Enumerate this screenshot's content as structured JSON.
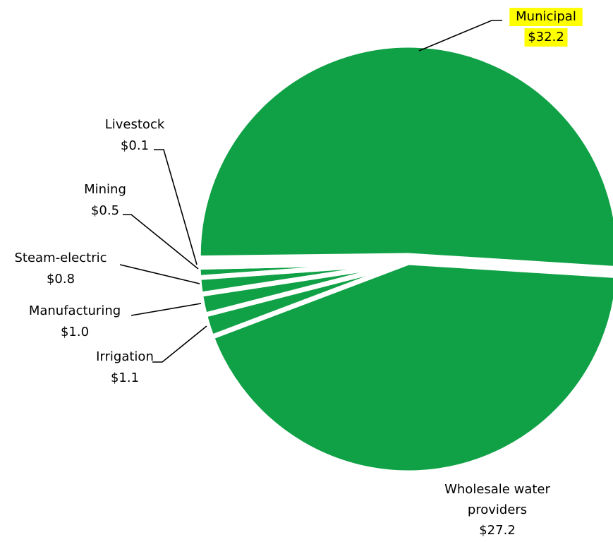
{
  "chart_data": {
    "type": "pie",
    "title": "",
    "slices": [
      {
        "name": "Municipal",
        "label_lines": [
          "Municipal",
          "$32.2"
        ],
        "value": 32.2,
        "highlight": true
      },
      {
        "name": "Wholesale water providers",
        "label_lines": [
          "Wholesale water",
          "providers",
          "$27.2"
        ],
        "value": 27.2
      },
      {
        "name": "Irrigation",
        "label_lines": [
          "Irrigation",
          "$1.1"
        ],
        "value": 1.1
      },
      {
        "name": "Manufacturing",
        "label_lines": [
          "Manufacturing",
          "$1.0"
        ],
        "value": 1.0
      },
      {
        "name": "Steam-electric",
        "label_lines": [
          "Steam-electric",
          "$0.8"
        ],
        "value": 0.8
      },
      {
        "name": "Mining",
        "label_lines": [
          "Mining",
          "$0.5"
        ],
        "value": 0.5
      },
      {
        "name": "Livestock",
        "label_lines": [
          "Livestock",
          "$0.1"
        ],
        "value": 0.1
      }
    ],
    "colors": {
      "slice": "#10a146",
      "highlight": "#ffff00"
    }
  }
}
